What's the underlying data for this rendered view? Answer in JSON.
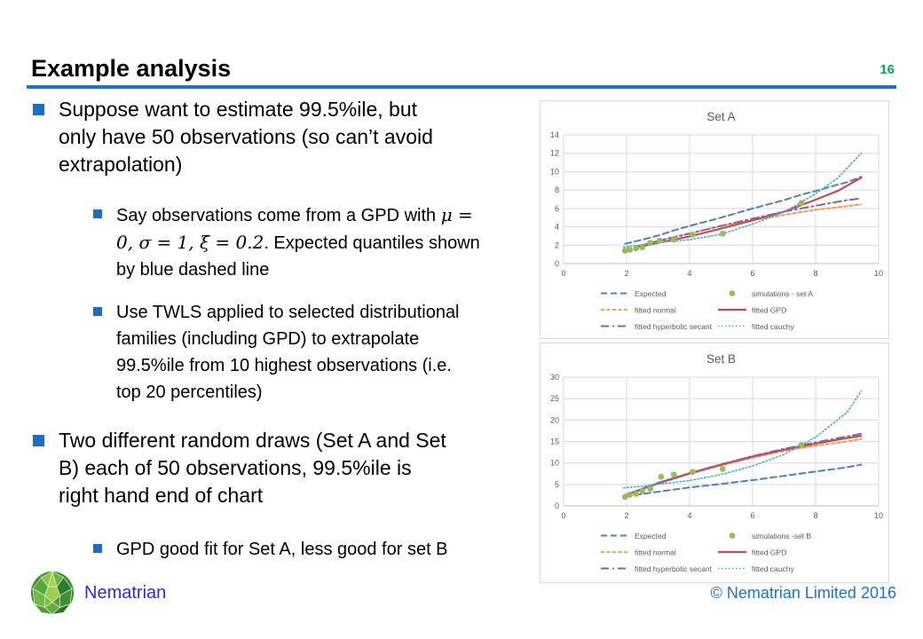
{
  "slide": {
    "title": "Example analysis",
    "page_number": "16"
  },
  "colors": {
    "accent_blue": "#1B74C8",
    "bullet_blue": "#1D6EC0",
    "page_number_green": "#00B050",
    "logo_blue": "#2B2BD5",
    "chart_text": "#595959",
    "gridline": "#D9D9D9"
  },
  "body": {
    "bullet1": "Suppose want to estimate 99.5%ile, but\nonly have 50 observations (so can’t avoid\nextrapolation)",
    "sub1": {
      "part1": "Say observations come from a GPD with ",
      "math": "μ =\n0, σ = 1, ξ = 0.2",
      "part2": ". Expected quantiles shown\nby blue dashed line"
    },
    "sub2": "Use TWLS applied to selected distributional\nfamilies (including GPD) to extrapolate\n99.5%ile from 10 highest observations (i.e.\ntop 20 percentiles)",
    "bullet2": "Two different random draws (Set A and Set\nB) each of 50 observations, 99.5%ile is\nright hand end of chart",
    "sub3": "GPD good fit for Set A, less good for set B"
  },
  "footer": {
    "logo_text": "Nematrian",
    "copyright": "© Nematrian Limited 2016"
  },
  "chart_data": [
    {
      "type": "line",
      "title": "Set A",
      "xlabel": "",
      "ylabel": "",
      "xlim": [
        0,
        10
      ],
      "ylim": [
        0,
        14
      ],
      "xticks": [
        0,
        2,
        4,
        6,
        8,
        10
      ],
      "yticks": [
        0,
        2,
        4,
        6,
        8,
        10,
        12,
        14
      ],
      "grid": true,
      "legend_position": "bottom",
      "series": [
        {
          "name": "Expected",
          "color": "#4F81BD",
          "dash": "7,4",
          "width": 2,
          "kind": "line",
          "points": [
            [
              1.95,
              2.15
            ],
            [
              2.5,
              2.6
            ],
            [
              3,
              3.05
            ],
            [
              3.5,
              3.6
            ],
            [
              4,
              4.1
            ],
            [
              4.5,
              4.55
            ],
            [
              5,
              5.0
            ],
            [
              5.5,
              5.5
            ],
            [
              6,
              6.0
            ],
            [
              6.5,
              6.45
            ],
            [
              7,
              6.9
            ],
            [
              7.5,
              7.45
            ],
            [
              8,
              7.9
            ],
            [
              8.5,
              8.4
            ],
            [
              9,
              8.85
            ],
            [
              9.45,
              9.45
            ]
          ]
        },
        {
          "name": "simulations - set A",
          "color": "#9BBB59",
          "kind": "scatter",
          "points": [
            [
              1.95,
              1.4
            ],
            [
              2.1,
              1.5
            ],
            [
              2.3,
              1.65
            ],
            [
              2.5,
              1.75
            ],
            [
              2.75,
              2.25
            ],
            [
              3.05,
              2.5
            ],
            [
              3.5,
              2.6
            ],
            [
              4.1,
              3.15
            ],
            [
              5.05,
              3.25
            ],
            [
              7.55,
              6.6
            ]
          ]
        },
        {
          "name": "fitted normal",
          "color": "#F79646",
          "dash": "4,2.5",
          "width": 1.8,
          "kind": "line",
          "points": [
            [
              2.25,
              1.8
            ],
            [
              3,
              2.5
            ],
            [
              4,
              3.3
            ],
            [
              5,
              4.1
            ],
            [
              6,
              4.7
            ],
            [
              7,
              5.3
            ],
            [
              8,
              5.85
            ],
            [
              9,
              6.25
            ],
            [
              9.45,
              6.45
            ]
          ]
        },
        {
          "name": "fitted GPD",
          "color": "#C0504D",
          "dash": "",
          "width": 2.2,
          "kind": "line",
          "points": [
            [
              2.3,
              1.75
            ],
            [
              3,
              2.25
            ],
            [
              4,
              2.95
            ],
            [
              5,
              3.8
            ],
            [
              6,
              4.7
            ],
            [
              7,
              5.65
            ],
            [
              8,
              6.95
            ],
            [
              8.7,
              7.9
            ],
            [
              9.45,
              9.35
            ]
          ]
        },
        {
          "name": "fitted hyperbolic secant",
          "color": "#8064A2",
          "dash": "9,4,2,4",
          "width": 2,
          "kind": "line",
          "points": [
            [
              2.3,
              1.85
            ],
            [
              3,
              2.45
            ],
            [
              4,
              3.25
            ],
            [
              5,
              4.1
            ],
            [
              6,
              4.9
            ],
            [
              7,
              5.65
            ],
            [
              8,
              6.3
            ],
            [
              9,
              6.9
            ],
            [
              9.45,
              7.1
            ]
          ]
        },
        {
          "name": "fitted cauchy",
          "color": "#4BACC6",
          "dash": "1.5,2.5",
          "width": 1.6,
          "kind": "line",
          "points": [
            [
              1.9,
              1.8
            ],
            [
              2.5,
              2.05
            ],
            [
              3,
              2.3
            ],
            [
              4,
              2.6
            ],
            [
              5,
              3.2
            ],
            [
              6,
              4.3
            ],
            [
              7,
              5.6
            ],
            [
              8,
              7.6
            ],
            [
              8.7,
              9.3
            ],
            [
              9.45,
              12.0
            ]
          ]
        }
      ]
    },
    {
      "type": "line",
      "title": "Set B",
      "xlabel": "",
      "ylabel": "",
      "xlim": [
        0,
        10
      ],
      "ylim": [
        0,
        30
      ],
      "xticks": [
        0,
        2,
        4,
        6,
        8,
        10
      ],
      "yticks": [
        0,
        5,
        10,
        15,
        20,
        25,
        30
      ],
      "grid": true,
      "legend_position": "bottom",
      "series": [
        {
          "name": "Expected",
          "color": "#4F81BD",
          "dash": "7,4",
          "width": 2,
          "kind": "line",
          "points": [
            [
              1.95,
              2.2
            ],
            [
              3,
              3.3
            ],
            [
              4,
              4.3
            ],
            [
              5,
              5.1
            ],
            [
              6,
              6.0
            ],
            [
              7,
              7.0
            ],
            [
              8,
              8.0
            ],
            [
              9,
              9.0
            ],
            [
              9.45,
              9.6
            ]
          ]
        },
        {
          "name": "simulations -set B",
          "color": "#9BBB59",
          "kind": "scatter",
          "points": [
            [
              1.95,
              2.1
            ],
            [
              2.1,
              2.6
            ],
            [
              2.3,
              2.8
            ],
            [
              2.5,
              3.4
            ],
            [
              2.75,
              4.0
            ],
            [
              3.1,
              6.8
            ],
            [
              3.5,
              7.3
            ],
            [
              4.1,
              7.9
            ],
            [
              5.05,
              8.6
            ],
            [
              7.55,
              14.2
            ]
          ]
        },
        {
          "name": "fitted normal",
          "color": "#F79646",
          "dash": "4,2.5",
          "width": 1.8,
          "kind": "line",
          "points": [
            [
              1.95,
              2.4
            ],
            [
              3,
              5.1
            ],
            [
              4,
              7.4
            ],
            [
              5,
              9.4
            ],
            [
              6,
              11.2
            ],
            [
              7,
              12.8
            ],
            [
              8,
              14.0
            ],
            [
              9,
              15.0
            ],
            [
              9.45,
              15.6
            ]
          ]
        },
        {
          "name": "fitted GPD",
          "color": "#C0504D",
          "dash": "",
          "width": 2.2,
          "kind": "line",
          "points": [
            [
              1.95,
              2.5
            ],
            [
              3,
              5.3
            ],
            [
              4,
              7.6
            ],
            [
              5,
              9.6
            ],
            [
              6,
              11.5
            ],
            [
              7,
              13.1
            ],
            [
              8,
              14.5
            ],
            [
              9,
              15.8
            ],
            [
              9.45,
              16.3
            ]
          ]
        },
        {
          "name": "fitted hyperbolic secant",
          "color": "#8064A2",
          "dash": "9,4,2,4",
          "width": 2,
          "kind": "line",
          "points": [
            [
              1.95,
              2.5
            ],
            [
              3,
              5.35
            ],
            [
              4,
              7.65
            ],
            [
              5,
              9.7
            ],
            [
              6,
              11.6
            ],
            [
              7,
              13.3
            ],
            [
              8,
              14.8
            ],
            [
              9,
              16.2
            ],
            [
              9.45,
              16.8
            ]
          ]
        },
        {
          "name": "fitted cauchy",
          "color": "#4BACC6",
          "dash": "1.5,2.5",
          "width": 1.6,
          "kind": "line",
          "points": [
            [
              1.9,
              4.2
            ],
            [
              2.5,
              4.6
            ],
            [
              3,
              5.0
            ],
            [
              4,
              5.9
            ],
            [
              5,
              7.3
            ],
            [
              6,
              9.3
            ],
            [
              7,
              12.0
            ],
            [
              8,
              16.0
            ],
            [
              9,
              21.8
            ],
            [
              9.45,
              26.8
            ]
          ]
        }
      ]
    }
  ]
}
